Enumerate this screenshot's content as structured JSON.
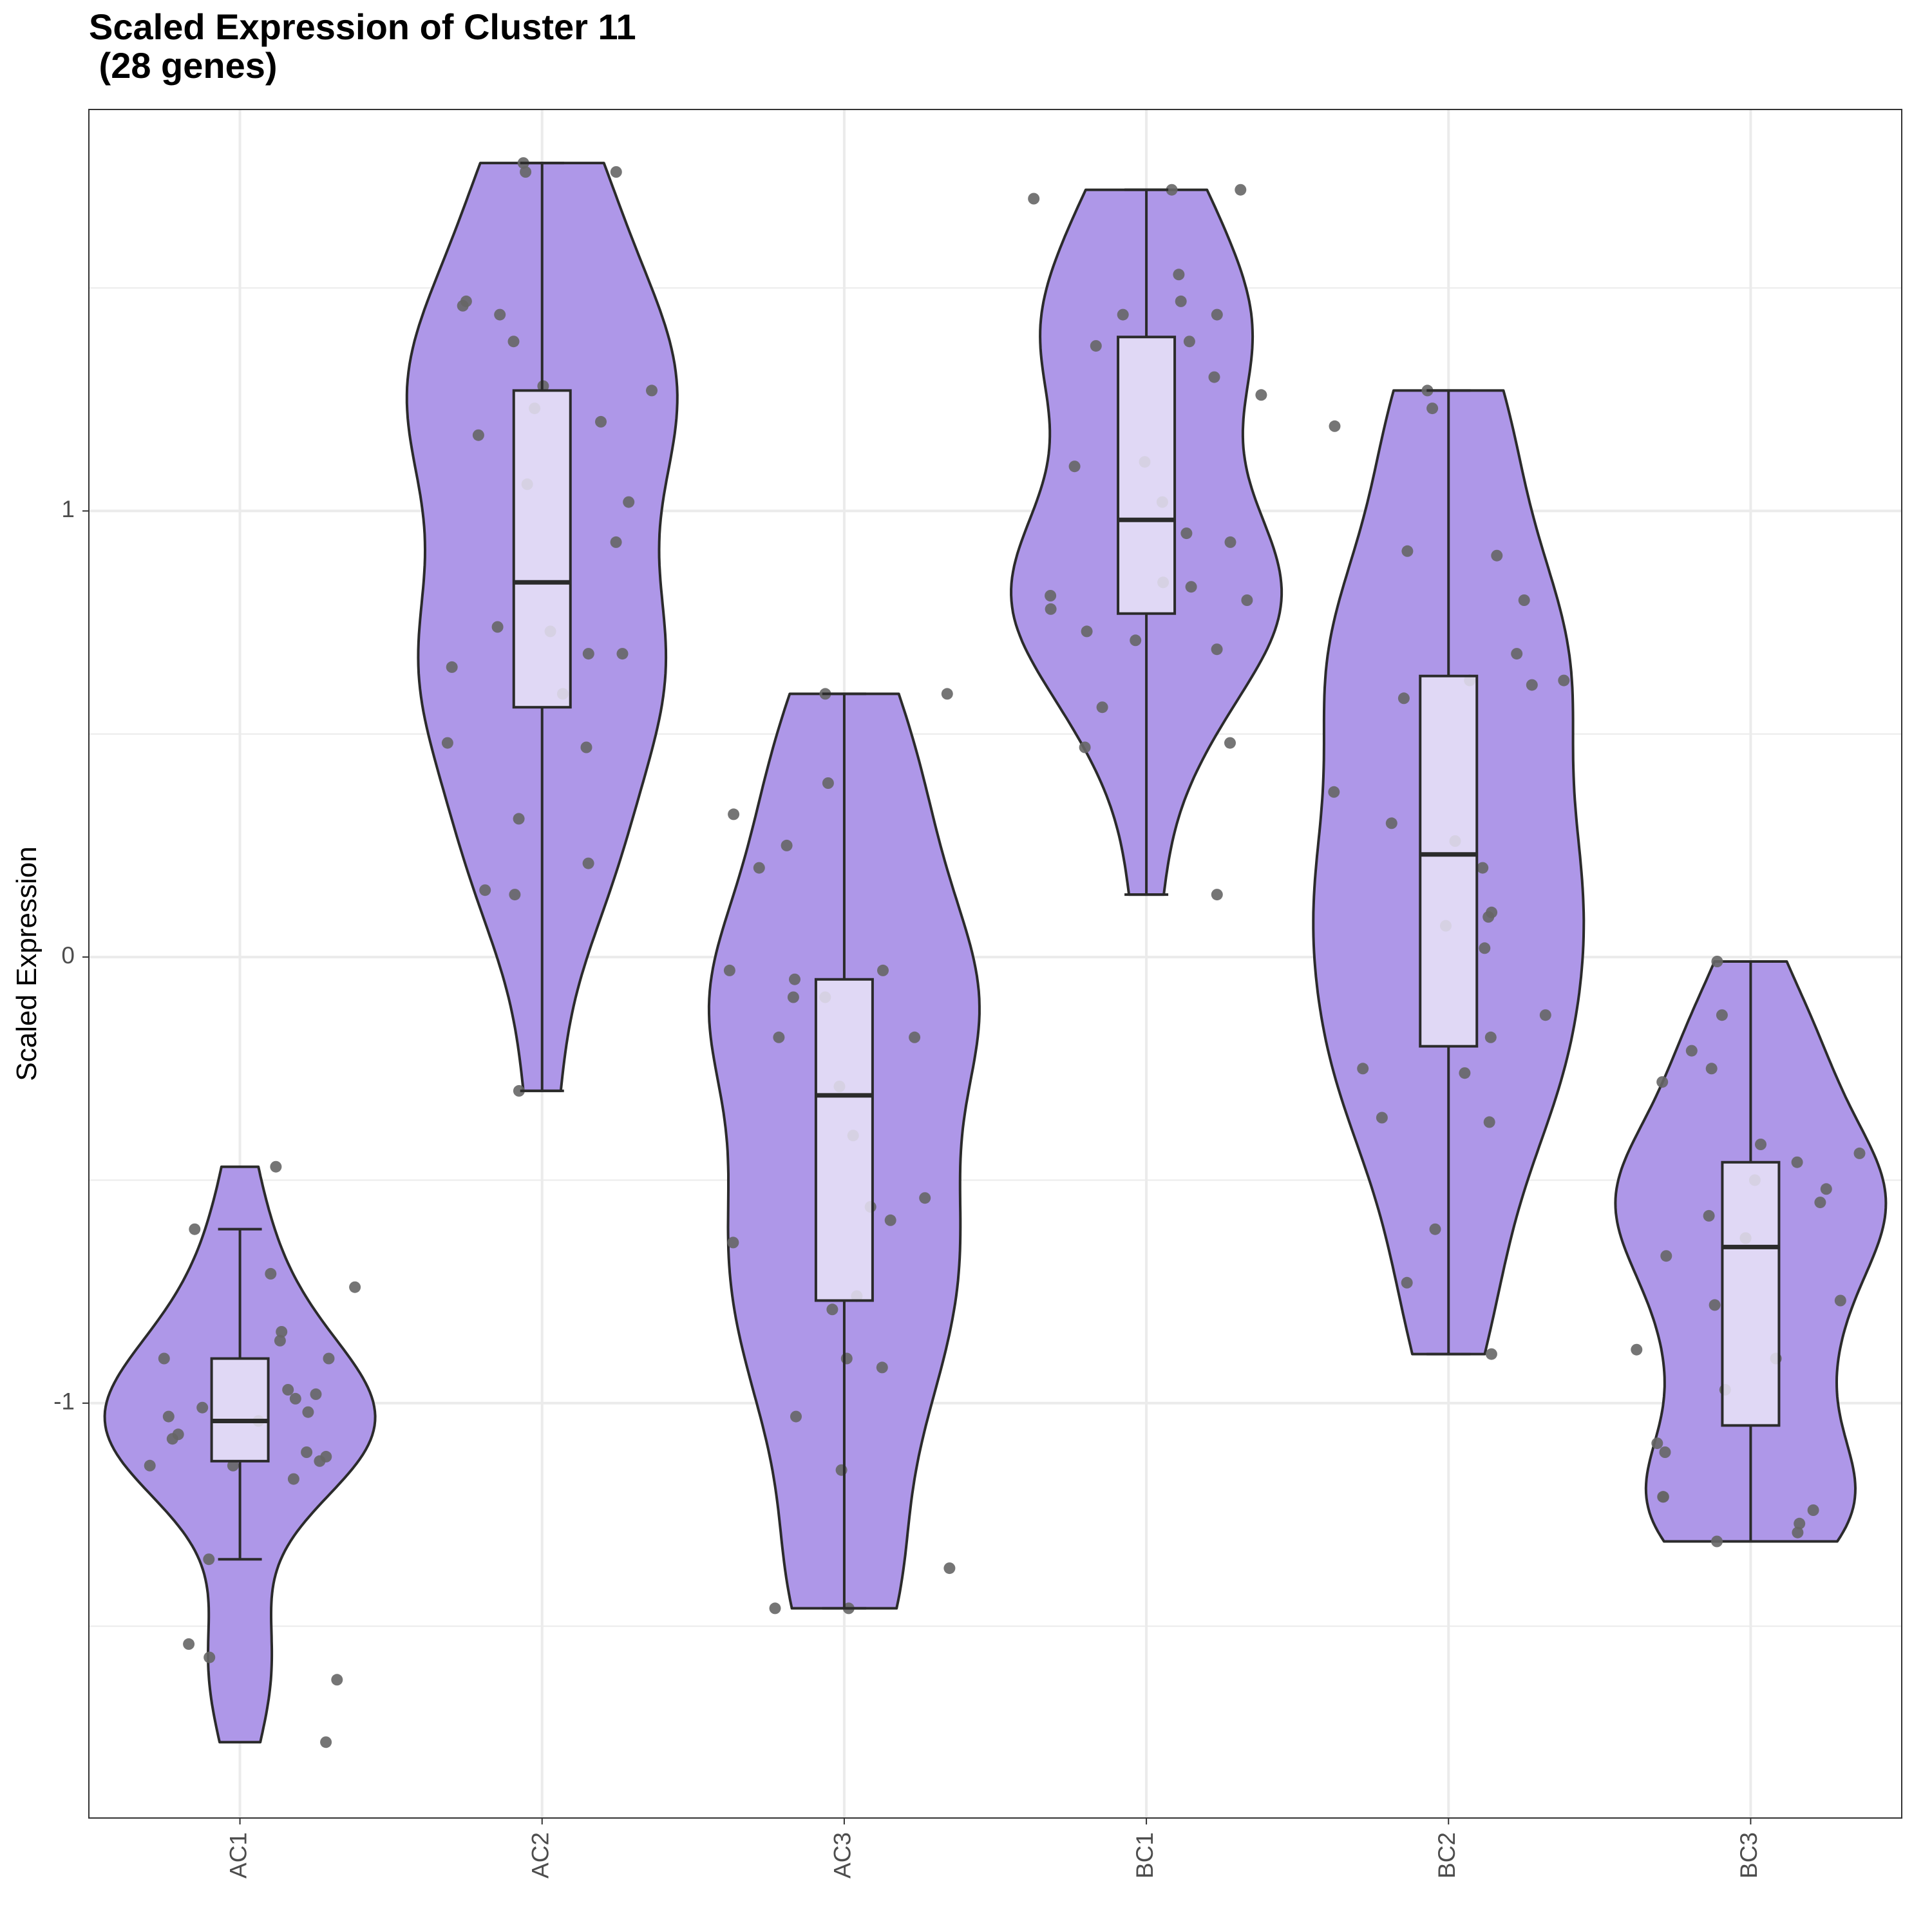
{
  "chart_data": {
    "type": "violin",
    "title": "Scaled Expression of Cluster 11",
    "subtitle": " (28 genes)",
    "xlabel": "",
    "ylabel": "Scaled Expression",
    "categories": [
      "AC1",
      "AC2",
      "AC3",
      "BC1",
      "BC2",
      "BC3"
    ],
    "y_ticks": [
      -1,
      0,
      1
    ],
    "ylim": [
      -1.93,
      1.9
    ],
    "grid": true,
    "colors": {
      "violin_fill": "#ae97e8",
      "violin_stroke": "#2b2b2b",
      "box_fill": "#e9e3f7",
      "point": "#666666",
      "grid": "#ebebeb"
    },
    "groups": [
      {
        "name": "AC1",
        "violin_min": -1.76,
        "violin_max": -0.47,
        "box": {
          "q1": -1.13,
          "median": -1.04,
          "q3": -0.9,
          "whisker_low": -1.35,
          "whisker_high": -0.61
        },
        "points": [
          -0.47,
          -0.61,
          -0.71,
          -0.74,
          -0.84,
          -0.86,
          -0.9,
          -0.9,
          -0.97,
          -0.98,
          -0.99,
          -1.01,
          -1.02,
          -1.03,
          -1.04,
          -1.07,
          -1.08,
          -1.11,
          -1.12,
          -1.13,
          -1.14,
          -1.14,
          -1.17,
          -1.35,
          -1.54,
          -1.57,
          -1.62,
          -1.76
        ]
      },
      {
        "name": "AC2",
        "violin_min": -0.3,
        "violin_max": 1.78,
        "box": {
          "q1": 0.56,
          "median": 0.84,
          "q3": 1.27,
          "whisker_low": -0.3,
          "whisker_high": 1.78
        },
        "points": [
          1.78,
          1.76,
          1.76,
          1.47,
          1.46,
          1.44,
          1.38,
          1.28,
          1.27,
          1.23,
          1.2,
          1.17,
          1.06,
          1.02,
          0.93,
          0.74,
          0.73,
          0.68,
          0.68,
          0.65,
          0.59,
          0.48,
          0.47,
          0.31,
          0.21,
          0.15,
          0.14,
          -0.3
        ]
      },
      {
        "name": "AC3",
        "violin_min": -1.46,
        "violin_max": 0.59,
        "box": {
          "q1": -0.77,
          "median": -0.31,
          "q3": -0.05,
          "whisker_low": -1.46,
          "whisker_high": 0.59
        },
        "points": [
          0.59,
          0.59,
          0.39,
          0.32,
          0.25,
          0.2,
          -0.03,
          -0.03,
          -0.05,
          -0.09,
          -0.09,
          -0.18,
          -0.18,
          -0.29,
          -0.4,
          -0.54,
          -0.56,
          -0.59,
          -0.64,
          -0.76,
          -0.79,
          -0.9,
          -0.92,
          -1.03,
          -1.15,
          -1.37,
          -1.46,
          -1.46
        ]
      },
      {
        "name": "BC1",
        "violin_min": 0.14,
        "violin_max": 1.72,
        "box": {
          "q1": 0.77,
          "median": 0.98,
          "q3": 1.39,
          "whisker_low": 0.14,
          "whisker_high": 1.72
        },
        "points": [
          1.72,
          1.72,
          1.7,
          1.53,
          1.47,
          1.44,
          1.44,
          1.38,
          1.37,
          1.3,
          1.26,
          1.11,
          1.1,
          1.02,
          0.95,
          0.93,
          0.84,
          0.83,
          0.81,
          0.8,
          0.78,
          0.73,
          0.71,
          0.69,
          0.56,
          0.48,
          0.47,
          0.14
        ]
      },
      {
        "name": "BC2",
        "violin_min": -0.89,
        "violin_max": 1.27,
        "box": {
          "q1": -0.2,
          "median": 0.23,
          "q3": 0.63,
          "whisker_low": -0.89,
          "whisker_high": 1.27
        },
        "points": [
          1.27,
          1.23,
          1.19,
          0.91,
          0.9,
          0.8,
          0.68,
          0.62,
          0.62,
          0.61,
          0.58,
          0.37,
          0.3,
          0.26,
          0.2,
          0.1,
          0.09,
          0.07,
          0.02,
          -0.13,
          -0.18,
          -0.25,
          -0.26,
          -0.36,
          -0.37,
          -0.61,
          -0.73,
          -0.89
        ]
      },
      {
        "name": "BC3",
        "violin_min": -1.31,
        "violin_max": -0.01,
        "box": {
          "q1": -1.05,
          "median": -0.65,
          "q3": -0.46,
          "whisker_low": -1.31,
          "whisker_high": -0.01
        },
        "points": [
          -0.01,
          -0.13,
          -0.21,
          -0.25,
          -0.28,
          -0.42,
          -0.44,
          -0.46,
          -0.5,
          -0.52,
          -0.55,
          -0.58,
          -0.63,
          -0.63,
          -0.67,
          -0.77,
          -0.78,
          -0.88,
          -0.9,
          -0.97,
          -1.09,
          -1.11,
          -1.21,
          -1.21,
          -1.24,
          -1.27,
          -1.29,
          -1.31
        ]
      }
    ]
  }
}
